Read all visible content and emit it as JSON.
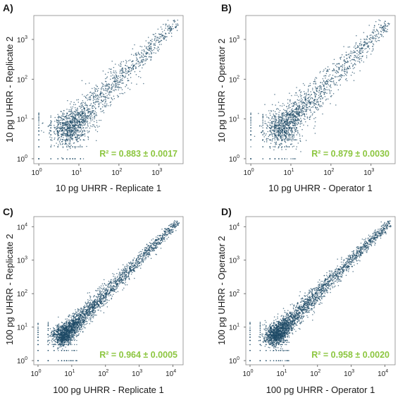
{
  "chart_data": [
    {
      "panel": "A)",
      "type": "scatter",
      "xlabel": "10 pg UHRR - Replicate 1",
      "ylabel": "10 pg UHRR - Replicate 2",
      "xscale": "log",
      "yscale": "log",
      "xlim": [
        0.75,
        4000
      ],
      "ylim": [
        0.75,
        4000
      ],
      "xticks": [
        1,
        10,
        100,
        1000
      ],
      "yticks": [
        1,
        10,
        100,
        1000
      ],
      "annotation": "R² = 0.883 ± 0.0017",
      "r2": 0.883,
      "r2_sd": 0.0017,
      "spread": 0.3,
      "xmax": 2800
    },
    {
      "panel": "B)",
      "type": "scatter",
      "xlabel": "10 pg UHRR - Operator 1",
      "ylabel": "10 pg UHRR - Operator 2",
      "xscale": "log",
      "yscale": "log",
      "xlim": [
        0.75,
        4000
      ],
      "ylim": [
        0.75,
        4000
      ],
      "xticks": [
        1,
        10,
        100,
        1000
      ],
      "yticks": [
        1,
        10,
        100,
        1000
      ],
      "annotation": "R² = 0.879 ± 0.0030",
      "r2": 0.879,
      "r2_sd": 0.003,
      "spread": 0.31,
      "xmax": 2800
    },
    {
      "panel": "C)",
      "type": "scatter",
      "xlabel": "100 pg UHRR - Replicate 1",
      "ylabel": "100 pg UHRR - Replicate 2",
      "xscale": "log",
      "yscale": "log",
      "xlim": [
        0.75,
        20000
      ],
      "ylim": [
        0.75,
        20000
      ],
      "xticks": [
        1,
        10,
        100,
        1000,
        10000
      ],
      "yticks": [
        1,
        10,
        100,
        1000,
        10000
      ],
      "annotation": "R² = 0.964 ± 0.0005",
      "r2": 0.964,
      "r2_sd": 0.0005,
      "spread": 0.2,
      "xmax": 14000
    },
    {
      "panel": "D)",
      "type": "scatter",
      "xlabel": "100 pg UHRR - Operator 1",
      "ylabel": "100 pg UHRR - Operator 2",
      "xscale": "log",
      "yscale": "log",
      "xlim": [
        0.75,
        20000
      ],
      "ylim": [
        0.75,
        20000
      ],
      "xticks": [
        1,
        10,
        100,
        1000,
        10000
      ],
      "yticks": [
        1,
        10,
        100,
        1000,
        10000
      ],
      "annotation": "R² = 0.958 ± 0.0020",
      "r2": 0.958,
      "r2_sd": 0.002,
      "spread": 0.21,
      "xmax": 14000
    }
  ],
  "colors": {
    "points": "#1d4a66",
    "annotation": "#8cc63f",
    "axis": "#555555",
    "frame": "#888888"
  }
}
